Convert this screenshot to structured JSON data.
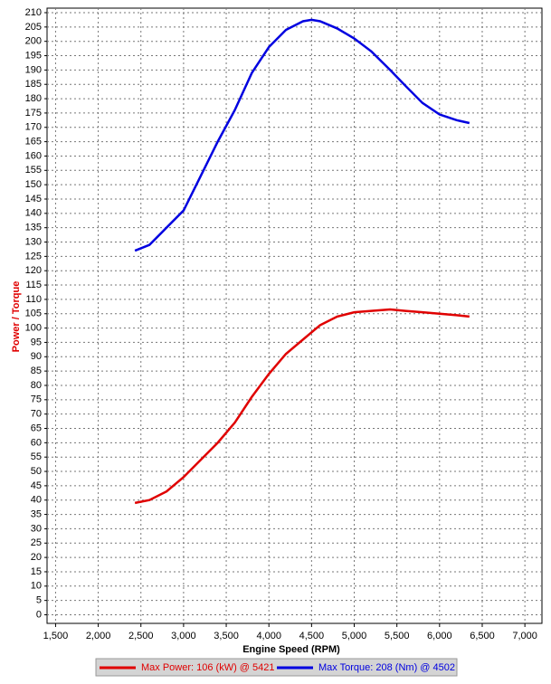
{
  "chart_data": {
    "type": "line",
    "xlabel": "Engine Speed (RPM)",
    "ylabel": "Power / Torque",
    "x": [
      2430,
      2600,
      2800,
      3000,
      3200,
      3400,
      3600,
      3800,
      4000,
      4200,
      4400,
      4500,
      4600,
      4800,
      5000,
      5200,
      5421,
      5600,
      5800,
      6000,
      6200,
      6350
    ],
    "series": [
      {
        "name": "Max Power: 106 (kW) @ 5421",
        "color": "#e00000",
        "values": [
          39,
          40,
          43,
          48,
          54,
          60,
          67,
          76,
          84,
          91,
          96,
          98.5,
          101,
          104,
          105.5,
          106,
          106.5,
          106,
          105.5,
          105,
          104.5,
          104
        ]
      },
      {
        "name": "Max Torque: 208 (Nm) @ 4502",
        "color": "#0000e0",
        "values": [
          127,
          129,
          135,
          141,
          153,
          165,
          176,
          189,
          198,
          204,
          207,
          207.5,
          207,
          204.5,
          201,
          196.5,
          190,
          184.5,
          178.5,
          174.5,
          172.5,
          171.5
        ]
      }
    ],
    "xlim": [
      1400,
      7200
    ],
    "ylim": [
      -3,
      210
    ],
    "xticks": [
      {
        "value": 1500,
        "label": "1,500"
      },
      {
        "value": 2000,
        "label": "2,000"
      },
      {
        "value": 2500,
        "label": "2,500"
      },
      {
        "value": 3000,
        "label": "3,000"
      },
      {
        "value": 3500,
        "label": "3,500"
      },
      {
        "value": 4000,
        "label": "4,000"
      },
      {
        "value": 4500,
        "label": "4,500"
      },
      {
        "value": 5000,
        "label": "5,000"
      },
      {
        "value": 5500,
        "label": "5,500"
      },
      {
        "value": 6000,
        "label": "6,000"
      },
      {
        "value": 6500,
        "label": "6,500"
      },
      {
        "value": 7000,
        "label": "7,000"
      }
    ],
    "yticks": [
      0,
      5,
      10,
      15,
      20,
      25,
      30,
      35,
      40,
      45,
      50,
      55,
      60,
      65,
      70,
      75,
      80,
      85,
      90,
      95,
      100,
      105,
      110,
      115,
      120,
      125,
      130,
      135,
      140,
      145,
      150,
      155,
      160,
      165,
      170,
      175,
      180,
      185,
      190,
      195,
      200,
      205,
      210
    ],
    "grid": true,
    "ylabel_color": "#e00000",
    "legend": "bottom"
  }
}
